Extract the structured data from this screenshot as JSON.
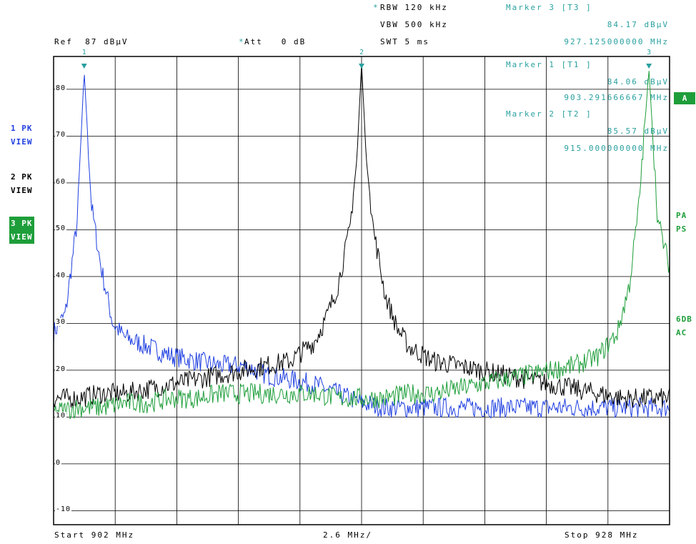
{
  "header": {
    "ref": "Ref  87 dBµV",
    "att": "Att   0 dB",
    "att_star": "*",
    "rbw": "RBW 120 kHz",
    "rbw_star": "*",
    "vbw": "VBW 500 kHz",
    "swt": "SWT 5 ms"
  },
  "markers": [
    {
      "id": "3",
      "title": "Marker 3 [T3 ]",
      "level": "84.17 dBµV",
      "freq": "927.125000000 MHz"
    },
    {
      "id": "1",
      "title": "Marker 1 [T1 ]",
      "level": "84.06 dBµV",
      "freq": "903.291666667 MHz"
    },
    {
      "id": "2",
      "title": "Marker 2 [T2 ]",
      "level": "85.57 dBµV",
      "freq": "915.000000000 MHz"
    }
  ],
  "traces_panel": [
    {
      "top": "1 PK",
      "bottom": "VIEW",
      "color": "#1f3fe0"
    },
    {
      "top": "2 PK",
      "bottom": "VIEW",
      "color": "#000000"
    },
    {
      "top": "3 PK",
      "bottom": "VIEW",
      "color": "#1e9e3a"
    }
  ],
  "right_labels": {
    "a_box": "A",
    "pa": "PA",
    "ps": "PS",
    "sixdb": "6DB",
    "ac": "AC"
  },
  "footer": {
    "start": "Start 902 MHz",
    "span": "2.6 MHz/",
    "stop": "Stop 928 MHz"
  },
  "chart_data": {
    "type": "line",
    "xlabel": "",
    "ylabel": "",
    "xlim": [
      902,
      928
    ],
    "ylim": [
      -13,
      87
    ],
    "yticks": [
      80,
      70,
      60,
      50,
      40,
      30,
      20,
      10,
      0,
      -10
    ],
    "ytick_labels": [
      "80",
      "70",
      "60",
      "50",
      "40",
      "30",
      "20",
      "10",
      "0",
      "-10"
    ],
    "grid": true,
    "marker_points": [
      {
        "label": "1",
        "x": 903.29,
        "y": 84.06
      },
      {
        "label": "2",
        "x": 915.0,
        "y": 85.57
      },
      {
        "label": "3",
        "x": 927.13,
        "y": 84.17
      }
    ],
    "series": [
      {
        "color": "#1f3fe0",
        "x": [
          902,
          902.5,
          903.0,
          903.29,
          903.6,
          904.0,
          904.5,
          905,
          906,
          907,
          908,
          909,
          910,
          911,
          912,
          913,
          914,
          915,
          916,
          917,
          918,
          919,
          920,
          921,
          922,
          923,
          924,
          925,
          926,
          927,
          928
        ],
        "y": [
          28,
          32,
          52,
          84,
          55,
          42,
          30,
          27,
          25,
          23,
          22,
          21,
          21,
          19,
          18,
          17,
          15,
          13,
          12,
          12,
          12,
          12,
          12,
          12,
          12,
          12,
          12,
          12,
          12,
          12,
          12
        ]
      },
      {
        "color": "#000000",
        "x": [
          902,
          903,
          904,
          905,
          906,
          907,
          908,
          909,
          910,
          911,
          912,
          913,
          913.5,
          914,
          914.5,
          914.8,
          915.0,
          915.2,
          915.5,
          916,
          916.5,
          917,
          918,
          919,
          920,
          921,
          922,
          923,
          924,
          925,
          926,
          927,
          928
        ],
        "y": [
          14,
          14,
          15,
          15,
          16,
          17,
          18,
          19,
          20,
          21,
          22,
          26,
          31,
          38,
          50,
          65,
          85.5,
          65,
          50,
          36,
          29,
          25,
          22,
          21,
          20,
          19,
          18,
          17,
          16,
          15,
          14,
          14,
          14
        ]
      },
      {
        "color": "#1e9e3a",
        "x": [
          902,
          903,
          904,
          905,
          906,
          907,
          908,
          909,
          910,
          911,
          912,
          913,
          914,
          915,
          916,
          917,
          918,
          919,
          920,
          921,
          922,
          923,
          924,
          925,
          925.8,
          926.3,
          926.7,
          927.13,
          927.5,
          928
        ],
        "y": [
          11,
          12,
          12,
          13,
          13,
          14,
          14,
          15,
          15,
          15,
          15,
          15,
          14,
          14,
          14,
          15,
          15,
          16,
          17,
          18,
          19,
          20,
          21,
          23,
          28,
          38,
          55,
          84.2,
          52,
          42
        ]
      }
    ]
  }
}
